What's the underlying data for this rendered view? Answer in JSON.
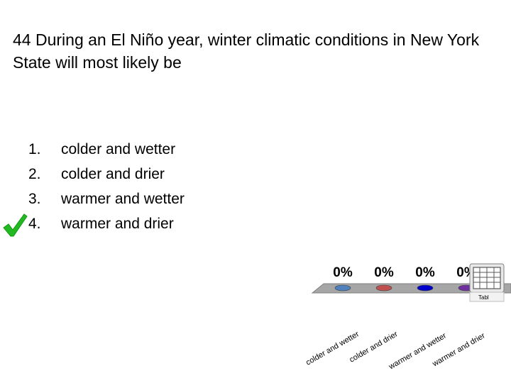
{
  "question": {
    "number": "44",
    "text": "During an El Niño year, winter climatic conditions in New York State will most likely be"
  },
  "options": [
    {
      "number": "1.",
      "text": "colder and wetter"
    },
    {
      "number": "2.",
      "text": "colder and drier"
    },
    {
      "number": "3.",
      "text": "warmer and wetter"
    },
    {
      "number": "4.",
      "text": "warmer and drier"
    }
  ],
  "correct_option": 4,
  "icons": {
    "correct_mark": "checkmark-icon",
    "table_widget": "table-grid-icon"
  },
  "table_widget_label": "Tabl",
  "chart_data": {
    "type": "bar",
    "categories": [
      "colder and wetter",
      "colder and drier",
      "warmer and wetter",
      "warmer and drier"
    ],
    "values": [
      0,
      0,
      0,
      0
    ],
    "data_labels": [
      "0%",
      "0%",
      "0%",
      "0%"
    ],
    "colors": [
      "#4f81bd",
      "#c0504d",
      "#0000cc",
      "#7030a0"
    ]
  }
}
